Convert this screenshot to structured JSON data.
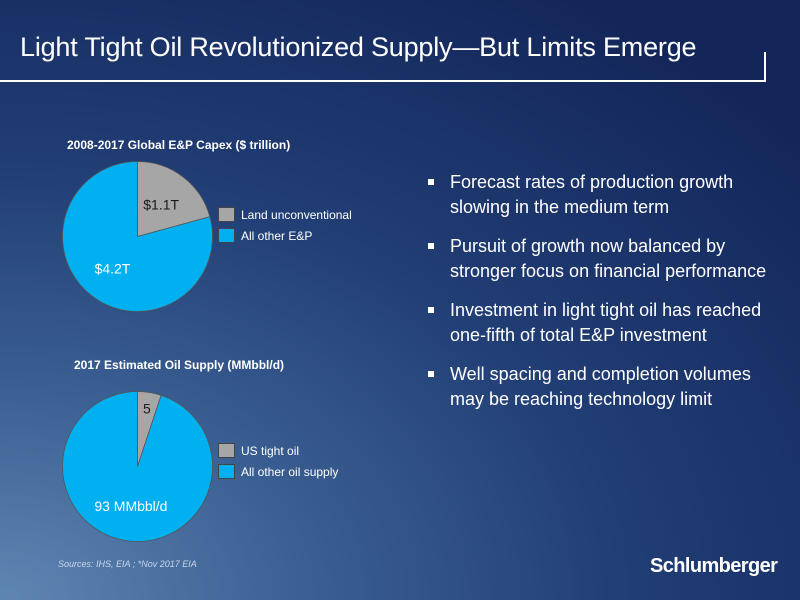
{
  "slide": {
    "title": "Light Tight Oil Revolutionized Supply—But Limits Emerge",
    "sources": "Sources: IHS,  EIA ; *Nov 2017 EIA",
    "logo_text": "Schlumberger"
  },
  "bullets": [
    "Forecast rates of production growth slowing in the medium term",
    "Pursuit of growth now balanced by stronger focus on financial performance",
    "Investment in light tight oil has reached one-fifth of total E&P investment",
    "Well spacing and completion volumes may be reaching technology limit"
  ],
  "chart_data": [
    {
      "type": "pie",
      "title": "2008-2017 Global E&P Capex ($ trillion)",
      "slices": [
        {
          "name": "Land unconventional",
          "value": 1.1,
          "label": "$1.1T",
          "color": "#a6a6a6"
        },
        {
          "name": "All other E&P",
          "value": 4.2,
          "label": "$4.2T",
          "color": "#00b0f0"
        }
      ],
      "legend": "right"
    },
    {
      "type": "pie",
      "title": "2017 Estimated Oil Supply (MMbbl/d)",
      "slices": [
        {
          "name": "US tight oil",
          "value": 5,
          "label": "5",
          "color": "#a6a6a6"
        },
        {
          "name": "All other oil supply",
          "value": 93,
          "label": "93 MMbbl/d",
          "color": "#00b0f0"
        }
      ],
      "legend": "right"
    }
  ]
}
